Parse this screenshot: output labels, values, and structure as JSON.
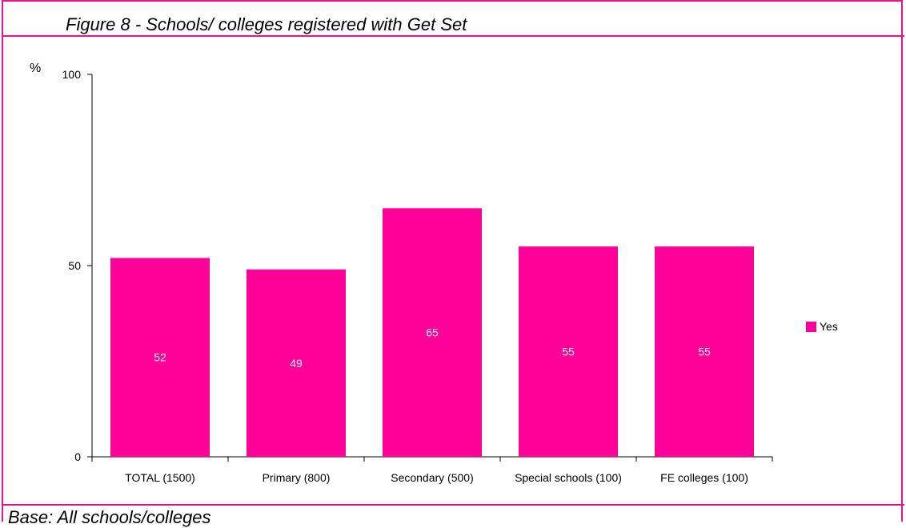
{
  "title": "Figure 8 - Schools/ colleges registered with Get Set",
  "footer": "Base: All schools/colleges",
  "colors": {
    "frame": "#e6158f",
    "bar": "#ff0099"
  },
  "chart_data": {
    "type": "bar",
    "title": "Figure 8 - Schools/ colleges registered with Get Set",
    "ylabel": "%",
    "xlabel": "",
    "ylim": [
      0,
      100
    ],
    "yticks": [
      0,
      50,
      100
    ],
    "grid": false,
    "legend_position": "right",
    "categories": [
      "TOTAL (1500)",
      "Primary (800)",
      "Secondary (500)",
      "Special schools (100)",
      "FE colleges (100)"
    ],
    "series": [
      {
        "name": "Yes",
        "values": [
          52,
          49,
          65,
          55,
          55
        ]
      }
    ]
  }
}
